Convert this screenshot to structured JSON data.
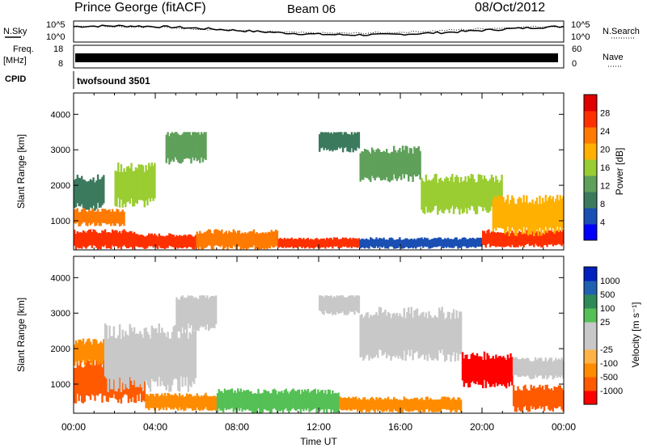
{
  "header": {
    "station": "Prince George (fitACF)",
    "beam": "Beam 06",
    "date": "08/Oct/2012"
  },
  "panels": {
    "nsky_label": "N.Sky",
    "nsky_ticks": [
      "10^5",
      "10^0"
    ],
    "nsearch_label": "N.Search",
    "nsearch_ticks": [
      "10^5",
      "10^0"
    ],
    "freq_label": "Freq.",
    "freq_unit": "[MHz]",
    "freq_ticks": [
      "18",
      "8"
    ],
    "nave_label": "Nave",
    "nave_ticks": [
      "60",
      "0"
    ],
    "cpid_label": "CPID",
    "cpid_value": "twofsound 3501"
  },
  "colors": {
    "power_scale": [
      "#0000ff",
      "#1a4fb3",
      "#3c7a5e",
      "#5fa05a",
      "#9acd32",
      "#ffb000",
      "#ff7a00",
      "#ff3000",
      "#e00000"
    ],
    "velocity_scale": [
      "#ff0000",
      "#ff5a00",
      "#ff8c00",
      "#ffb347",
      "#c8c8c8",
      "#c8c8c8",
      "#55c055",
      "#2e8b57",
      "#2060b0",
      "#0020c0"
    ]
  },
  "chart_data": [
    {
      "type": "heatmap",
      "title": "Power",
      "xlabel": "Time UT",
      "ylabel": "Slant Range [km]",
      "x_ticks": [
        "00:00",
        "04:00",
        "08:00",
        "12:00",
        "16:00",
        "20:00",
        "00:00"
      ],
      "y_ticks": [
        "1000",
        "2000",
        "3000",
        "4000"
      ],
      "ylim": [
        180,
        4600
      ],
      "colorbar_label": "Power [dB]",
      "colorbar_ticks": [
        "4",
        "8",
        "12",
        "16",
        "20",
        "24",
        "28"
      ],
      "colorbar_range": [
        0,
        32
      ],
      "bands": [
        {
          "t0": 0.0,
          "t1": 3.0,
          "r0": 250,
          "r1": 700,
          "value": 26
        },
        {
          "t0": 3.0,
          "t1": 6.0,
          "r0": 250,
          "r1": 600,
          "value": 28
        },
        {
          "t0": 6.0,
          "t1": 10.0,
          "r0": 250,
          "r1": 700,
          "value": 22
        },
        {
          "t0": 10.0,
          "t1": 14.0,
          "r0": 250,
          "r1": 500,
          "value": 28
        },
        {
          "t0": 14.0,
          "t1": 20.0,
          "r0": 250,
          "r1": 500,
          "value": 6
        },
        {
          "t0": 20.0,
          "t1": 24.0,
          "r0": 300,
          "r1": 700,
          "value": 26
        },
        {
          "t0": 0.0,
          "t1": 2.5,
          "r0": 900,
          "r1": 1300,
          "value": 24
        },
        {
          "t0": 0.0,
          "t1": 1.5,
          "r0": 1400,
          "r1": 2200,
          "value": 10
        },
        {
          "t0": 2.0,
          "t1": 4.0,
          "r0": 1500,
          "r1": 2500,
          "value": 16
        },
        {
          "t0": 4.5,
          "t1": 6.5,
          "r0": 2700,
          "r1": 3500,
          "value": 14
        },
        {
          "t0": 12.0,
          "t1": 14.0,
          "r0": 3000,
          "r1": 3500,
          "value": 10
        },
        {
          "t0": 14.0,
          "t1": 17.0,
          "r0": 2200,
          "r1": 3000,
          "value": 14
        },
        {
          "t0": 17.0,
          "t1": 21.0,
          "r0": 1300,
          "r1": 2200,
          "value": 16
        },
        {
          "t0": 20.5,
          "t1": 24.0,
          "r0": 700,
          "r1": 1600,
          "value": 20
        }
      ]
    },
    {
      "type": "heatmap",
      "title": "Velocity",
      "xlabel": "Time UT",
      "ylabel": "Slant Range [km]",
      "x_ticks": [
        "00:00",
        "04:00",
        "08:00",
        "12:00",
        "16:00",
        "20:00",
        "00:00"
      ],
      "y_ticks": [
        "1000",
        "2000",
        "3000",
        "4000"
      ],
      "ylim": [
        180,
        4600
      ],
      "colorbar_label": "Velocity [m s⁻¹]",
      "colorbar_ticks": [
        "-1000",
        "-500",
        "-100",
        "-25",
        "25",
        "100",
        "500",
        "1000"
      ],
      "bands": [
        {
          "t0": 0.0,
          "t1": 3.5,
          "r0": 600,
          "r1": 1600,
          "value": -500
        },
        {
          "t0": 0.0,
          "t1": 1.5,
          "r0": 1600,
          "r1": 2200,
          "value": -100
        },
        {
          "t0": 3.5,
          "t1": 7.0,
          "r0": 300,
          "r1": 700,
          "value": -100
        },
        {
          "t0": 7.0,
          "t1": 13.0,
          "r0": 250,
          "r1": 800,
          "value": 100
        },
        {
          "t0": 13.0,
          "t1": 19.0,
          "r0": 250,
          "r1": 600,
          "value": -100
        },
        {
          "t0": 1.5,
          "t1": 6.0,
          "r0": 1000,
          "r1": 2500,
          "value": 0
        },
        {
          "t0": 5.0,
          "t1": 7.0,
          "r0": 2600,
          "r1": 3500,
          "value": 0
        },
        {
          "t0": 12.0,
          "t1": 14.0,
          "r0": 3000,
          "r1": 3500,
          "value": 0
        },
        {
          "t0": 14.0,
          "t1": 19.0,
          "r0": 1800,
          "r1": 3000,
          "value": 0
        },
        {
          "t0": 19.0,
          "t1": 21.5,
          "r0": 1000,
          "r1": 1800,
          "value": -1000
        },
        {
          "t0": 21.5,
          "t1": 24.0,
          "r0": 300,
          "r1": 900,
          "value": -500
        },
        {
          "t0": 21.5,
          "t1": 24.0,
          "r0": 1200,
          "r1": 1700,
          "value": 0
        }
      ]
    }
  ]
}
